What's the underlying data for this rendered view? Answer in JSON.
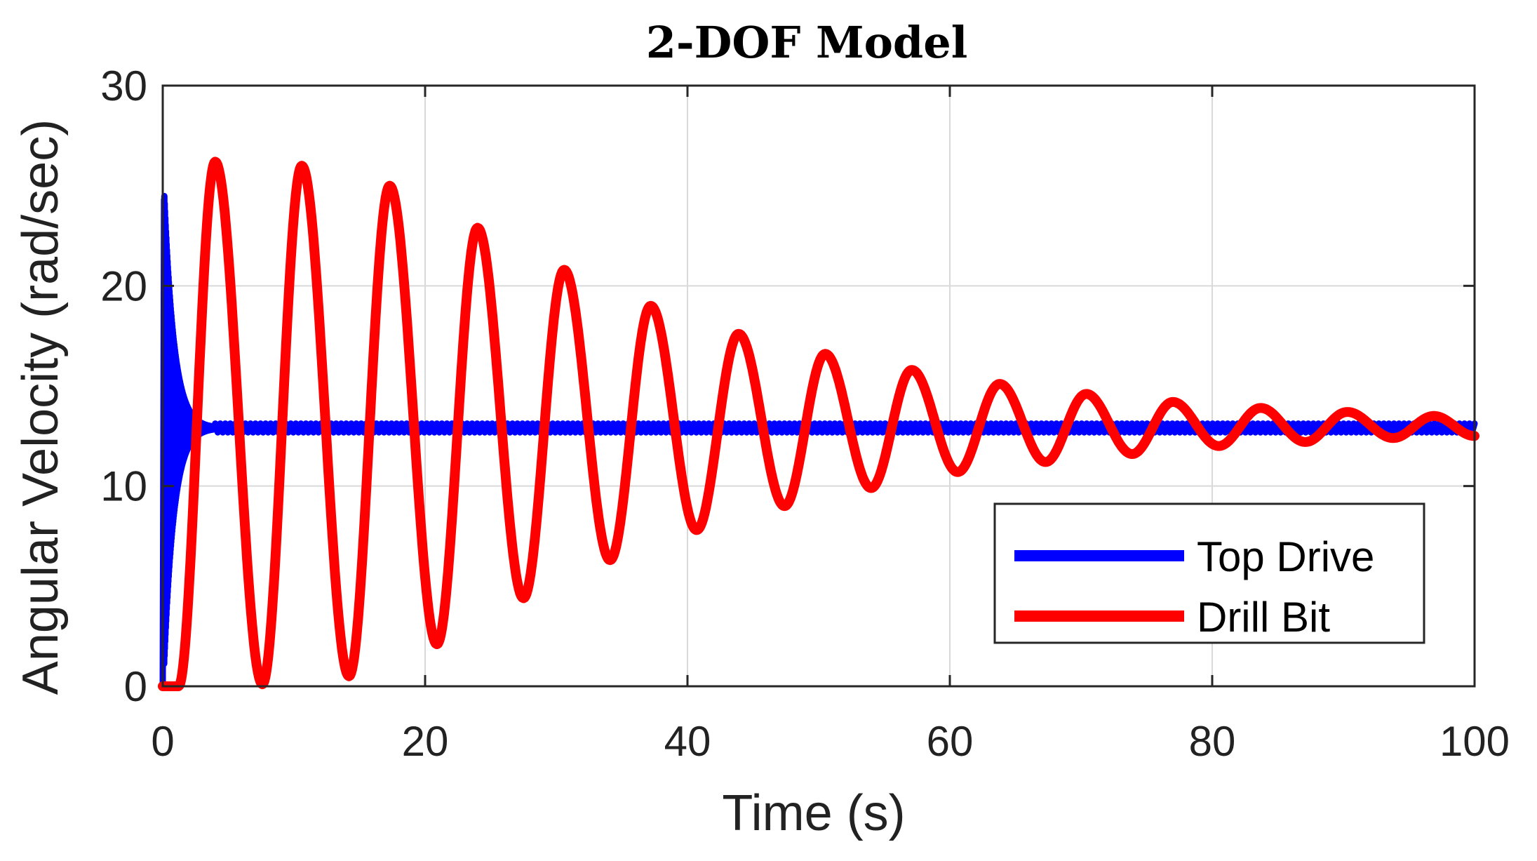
{
  "chart_data": {
    "type": "line",
    "title": "2-DOF Model",
    "xlabel": "Time (s)",
    "ylabel": "Angular Velocity (rad/sec)",
    "xlim": [
      0,
      100
    ],
    "ylim": [
      0,
      30
    ],
    "xticks": [
      0,
      20,
      40,
      60,
      80,
      100
    ],
    "yticks": [
      0,
      10,
      20,
      30
    ],
    "grid": true,
    "legend_position": "bottom-right",
    "series": [
      {
        "name": "Top Drive",
        "color": "#0000ff",
        "model": "transient",
        "peak": 24.3,
        "steady": 12.9,
        "settle_time": 4
      },
      {
        "name": "Drill Bit",
        "color": "#ff0000",
        "model": "damped_oscillation",
        "start_time": 1.2,
        "steady": 12.9,
        "period": 6.6,
        "peaks": [
          {
            "x": 4,
            "y": 26.2
          },
          {
            "x": 10.6,
            "y": 26.0
          },
          {
            "x": 17.3,
            "y": 25.0
          },
          {
            "x": 24,
            "y": 22.9
          },
          {
            "x": 30.6,
            "y": 20.8
          },
          {
            "x": 37.2,
            "y": 19.0
          },
          {
            "x": 43.9,
            "y": 17.6
          },
          {
            "x": 50.5,
            "y": 16.6
          },
          {
            "x": 57.1,
            "y": 15.8
          },
          {
            "x": 63.8,
            "y": 15.1
          },
          {
            "x": 70.4,
            "y": 14.6
          },
          {
            "x": 77,
            "y": 14.2
          },
          {
            "x": 83.7,
            "y": 13.9
          },
          {
            "x": 90.3,
            "y": 13.7
          },
          {
            "x": 96.9,
            "y": 13.5
          }
        ],
        "troughs": [
          {
            "x": 7.6,
            "y": 0.1
          },
          {
            "x": 14.2,
            "y": 0.5
          },
          {
            "x": 20.9,
            "y": 2.1
          },
          {
            "x": 27.5,
            "y": 4.4
          },
          {
            "x": 34.1,
            "y": 6.3
          },
          {
            "x": 40.7,
            "y": 7.8
          },
          {
            "x": 47.4,
            "y": 9.0
          },
          {
            "x": 54,
            "y": 9.9
          },
          {
            "x": 60.6,
            "y": 10.7
          },
          {
            "x": 67.3,
            "y": 11.2
          },
          {
            "x": 73.9,
            "y": 11.6
          },
          {
            "x": 80.5,
            "y": 12.0
          },
          {
            "x": 87.1,
            "y": 12.2
          },
          {
            "x": 93.8,
            "y": 12.4
          },
          {
            "x": 100,
            "y": 12.5
          }
        ]
      }
    ]
  }
}
